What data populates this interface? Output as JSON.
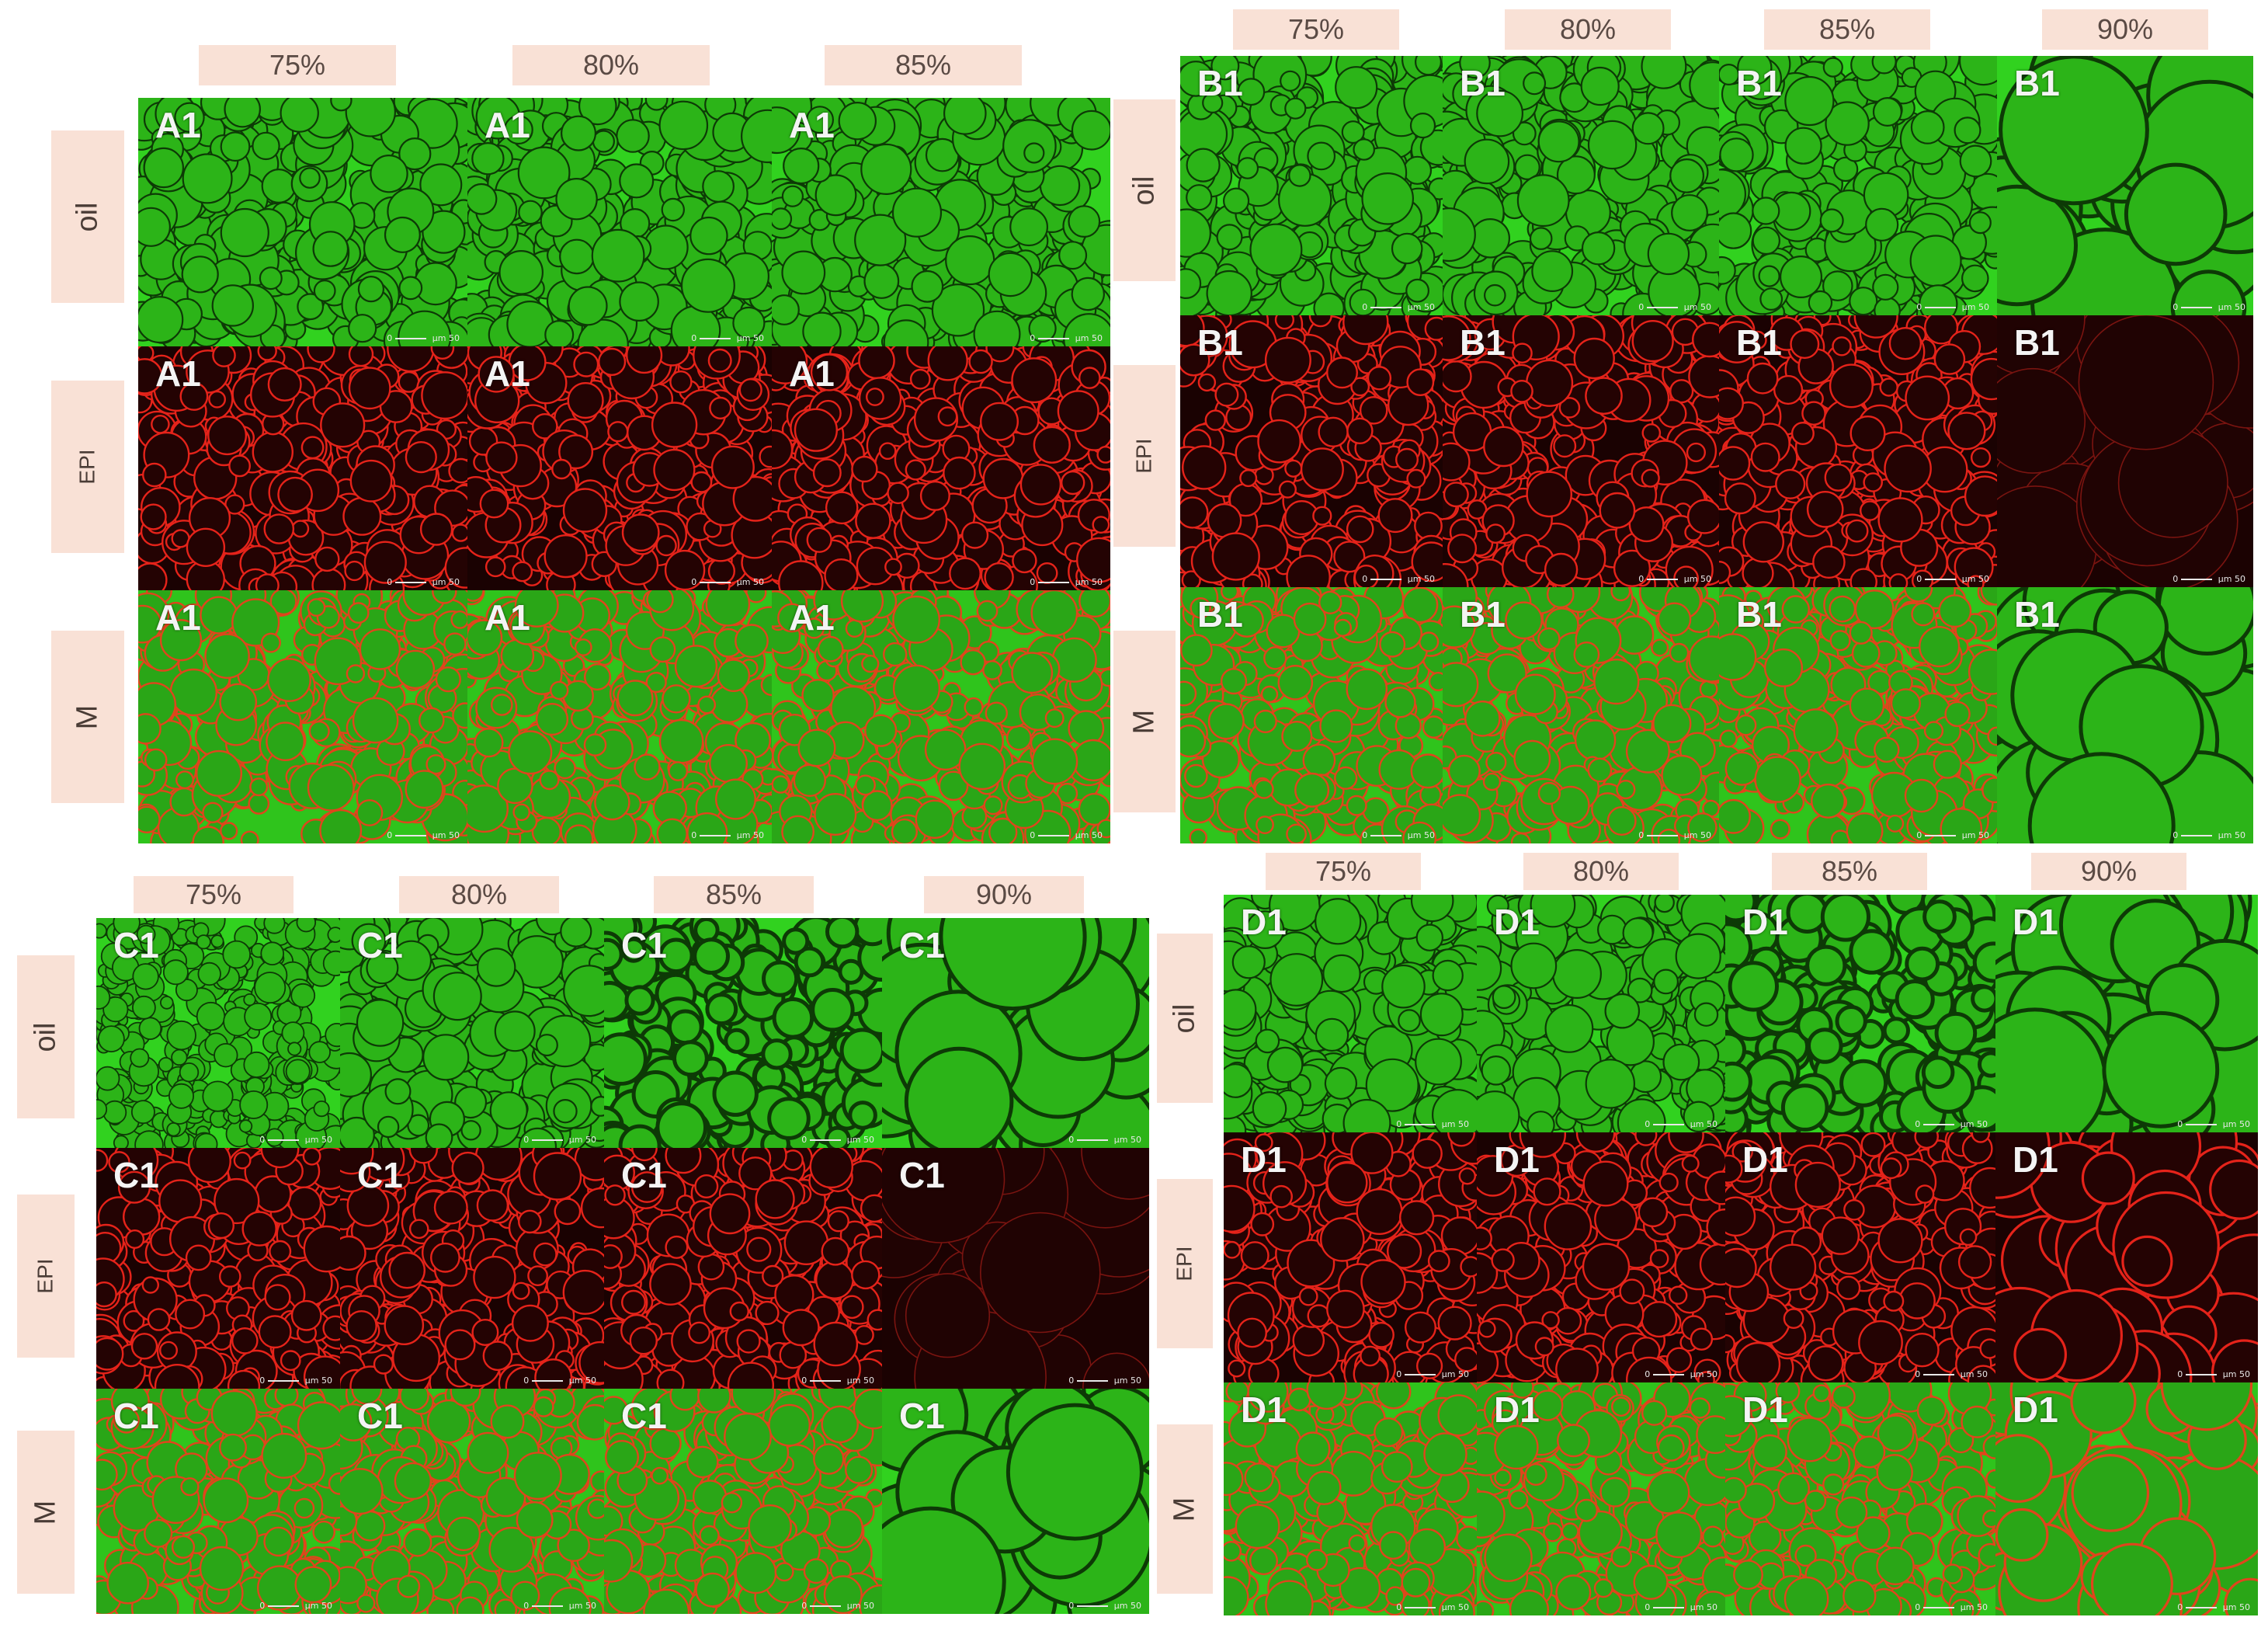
{
  "palette": {
    "oil": {
      "bg": "#31d21f",
      "cell": "#2cb418",
      "edge": "#0d3a06"
    },
    "epi": {
      "bg": "#1a0202",
      "cell": "#240303",
      "edge": "#e5231a"
    },
    "merge": {
      "bg": "#2fc41c",
      "cell": "#2aa617",
      "edge": "#e0451c"
    },
    "epi_faint": {
      "bg": "#1b0202",
      "cell": "#200303",
      "edge": "#7a1410"
    }
  },
  "row_names": {
    "oil": "oil",
    "epi": "EPI",
    "merge": "M"
  },
  "scale_text": {
    "zero": "0",
    "unit": "µm",
    "value": "50"
  },
  "panels": [
    {
      "id": "A",
      "columns": [
        "75%",
        "80%",
        "85%"
      ],
      "tiles": {
        "oil": [
          "A1",
          "A1",
          "A1"
        ],
        "epi": [
          "A1",
          "A1",
          "A1"
        ],
        "merge": [
          "A1",
          "A1",
          "A1"
        ]
      }
    },
    {
      "id": "B",
      "columns": [
        "75%",
        "80%",
        "85%",
        "90%"
      ],
      "tiles": {
        "oil": [
          "B1",
          "B1",
          "B1",
          "B1"
        ],
        "epi": [
          "B1",
          "B1",
          "B1",
          "B1"
        ],
        "merge": [
          "B1",
          "B1",
          "B1",
          "B1"
        ]
      }
    },
    {
      "id": "C",
      "columns": [
        "75%",
        "80%",
        "85%",
        "90%"
      ],
      "tiles": {
        "oil": [
          "C1",
          "C1",
          "C1",
          "C1"
        ],
        "epi": [
          "C1",
          "C1",
          "C1",
          "C1"
        ],
        "merge": [
          "C1",
          "C1",
          "C1",
          "C1"
        ]
      }
    },
    {
      "id": "D",
      "columns": [
        "75%",
        "80%",
        "85%",
        "90%"
      ],
      "tiles": {
        "oil": [
          "D1",
          "D1",
          "D1",
          "D1"
        ],
        "epi": [
          "D1",
          "D1",
          "D1",
          "D1"
        ],
        "merge": [
          "D1",
          "D1",
          "D1",
          "D1"
        ]
      }
    }
  ]
}
